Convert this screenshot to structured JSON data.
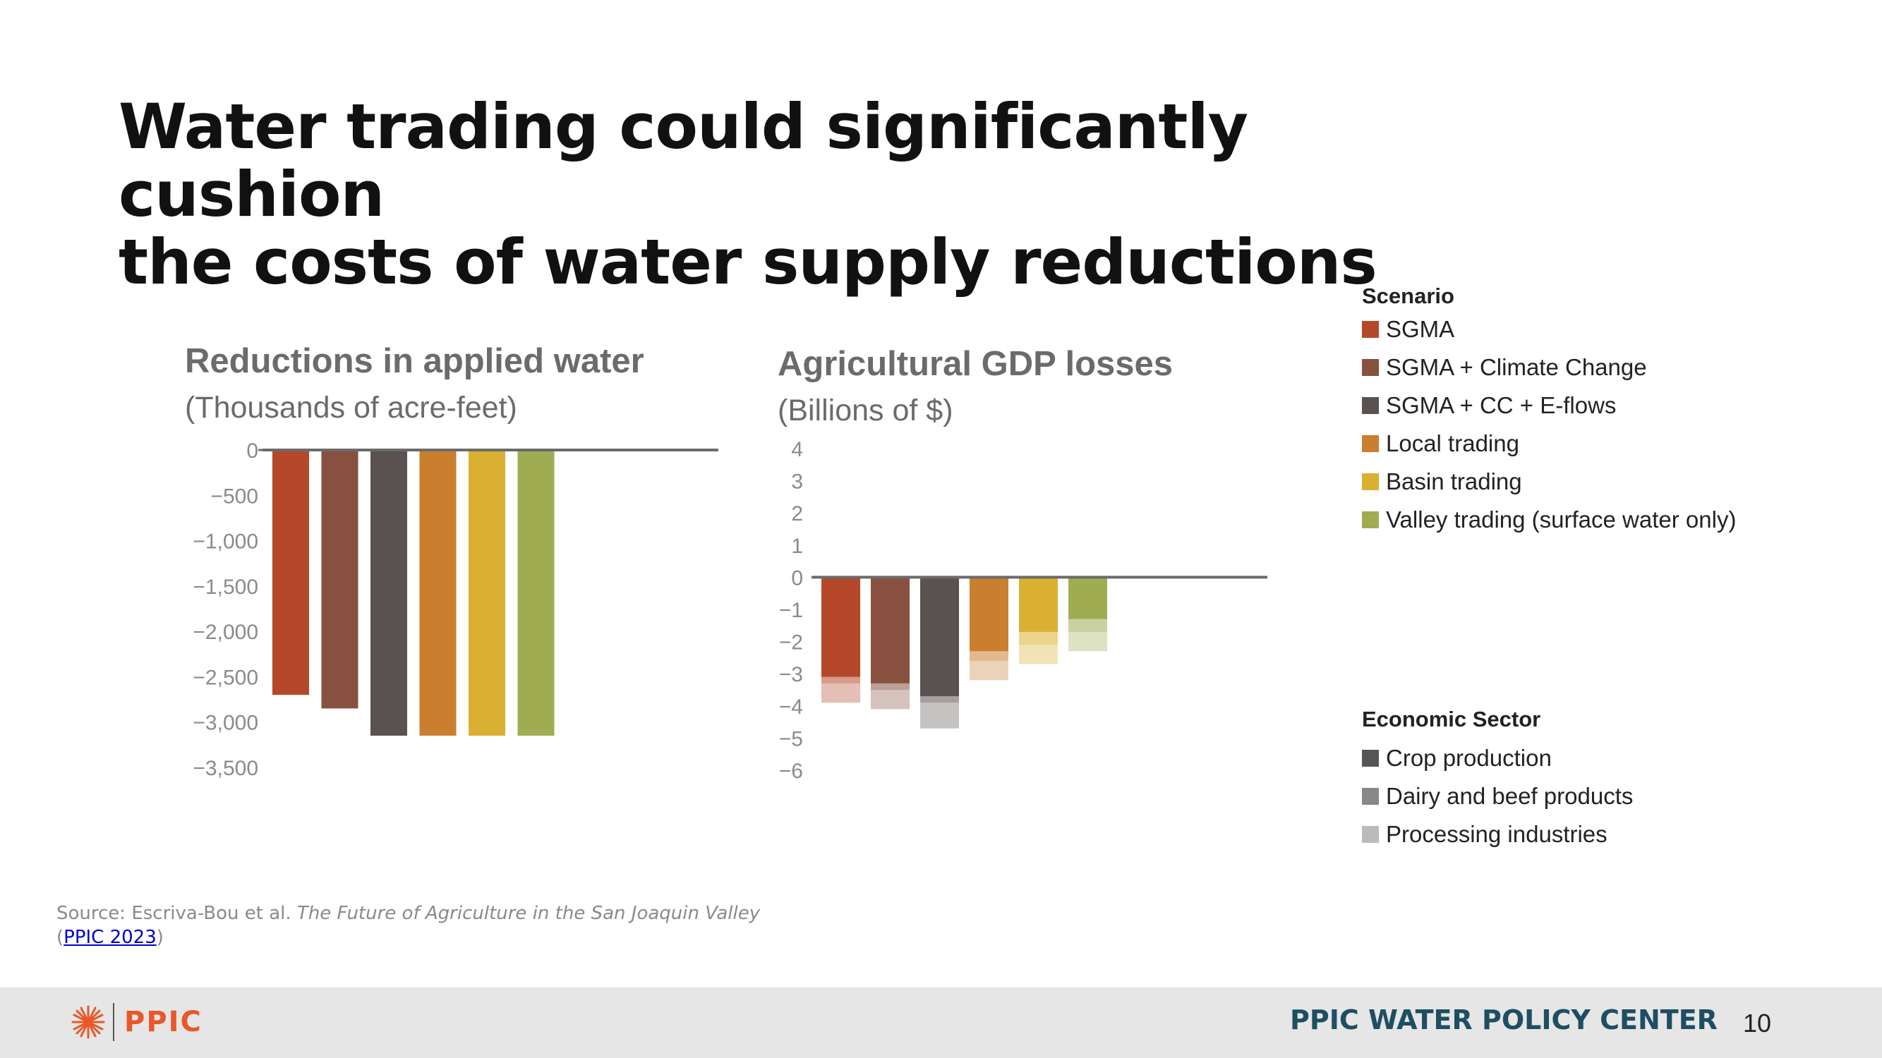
{
  "slide": {
    "title_line1": "Water trading could significantly cushion",
    "title_line2": "the costs of water supply reductions",
    "page_number": "10"
  },
  "colors": {
    "sgma": "#b5482a",
    "sgma_cc": "#87503f",
    "sgma_cc_eflows": "#5a5250",
    "local": "#c97f2e",
    "basin": "#d9b031",
    "valley": "#9fac52",
    "crop": "#555555",
    "dairy": "#888888",
    "processing": "#bbbbbb",
    "axis": "#6b6b6b"
  },
  "legend": {
    "scenario_heading": "Scenario",
    "scenarios": [
      {
        "label": "SGMA",
        "color": "#b5482a"
      },
      {
        "label": "SGMA + Climate Change",
        "color": "#87503f"
      },
      {
        "label": "SGMA + CC + E-flows",
        "color": "#5a5250"
      },
      {
        "label": "Local trading",
        "color": "#c97f2e"
      },
      {
        "label": "Basin trading",
        "color": "#d9b031"
      },
      {
        "label": "Valley trading (surface water only)",
        "color": "#9fac52"
      }
    ],
    "sector_heading": "Economic Sector",
    "sectors": [
      {
        "label": "Crop production",
        "color": "#555555"
      },
      {
        "label": "Dairy and beef products",
        "color": "#888888"
      },
      {
        "label": "Processing industries",
        "color": "#bbbbbb"
      }
    ]
  },
  "chart_data": [
    {
      "type": "bar",
      "title": "Reductions in applied water",
      "subtitle": "(Thousands of acre-feet)",
      "categories": [
        "SGMA",
        "SGMA + Climate Change",
        "SGMA + CC + E-flows",
        "Local trading",
        "Basin trading",
        "Valley trading (surface water only)"
      ],
      "values": [
        -2700,
        -2850,
        -3150,
        -3150,
        -3150,
        -3150
      ],
      "ylim": [
        -3500,
        0
      ],
      "yticks": [
        0,
        -500,
        -1000,
        -1500,
        -2000,
        -2500,
        -3000,
        -3500
      ],
      "ytick_labels": [
        "0",
        "−500",
        "−1,000",
        "−1,500",
        "−2,000",
        "−2,500",
        "−3,000",
        "−3,500"
      ]
    },
    {
      "type": "bar",
      "stacked": true,
      "title": "Agricultural GDP losses",
      "subtitle": "(Billions of $)",
      "categories": [
        "SGMA",
        "SGMA + Climate Change",
        "SGMA + CC + E-flows",
        "Local trading",
        "Basin trading",
        "Valley trading (surface water only)"
      ],
      "series": [
        {
          "name": "Crop production",
          "values": [
            -3.1,
            -3.3,
            -3.7,
            -2.3,
            -1.7,
            -1.3
          ]
        },
        {
          "name": "Dairy and beef products",
          "values": [
            -0.2,
            -0.2,
            -0.2,
            -0.3,
            -0.4,
            -0.4
          ]
        },
        {
          "name": "Processing industries",
          "values": [
            -0.6,
            -0.6,
            -0.8,
            -0.6,
            -0.6,
            -0.6
          ]
        }
      ],
      "ylim": [
        -6,
        4
      ],
      "yticks": [
        4,
        3,
        2,
        1,
        0,
        -1,
        -2,
        -3,
        -4,
        -5,
        -6
      ],
      "ytick_labels": [
        "4",
        "3",
        "2",
        "1",
        "0",
        "−1",
        "−2",
        "−3",
        "−4",
        "−5",
        "−6"
      ]
    }
  ],
  "source": {
    "prefix": "Source: Escriva-Bou et al. ",
    "publication": "The Future of Agriculture in the San Joaquin Valley",
    "open_paren": "(",
    "link_text": "PPIC 2023",
    "close_paren": ")"
  },
  "footer": {
    "logo_text": "PPIC",
    "center_name": "PPIC WATER POLICY CENTER"
  }
}
